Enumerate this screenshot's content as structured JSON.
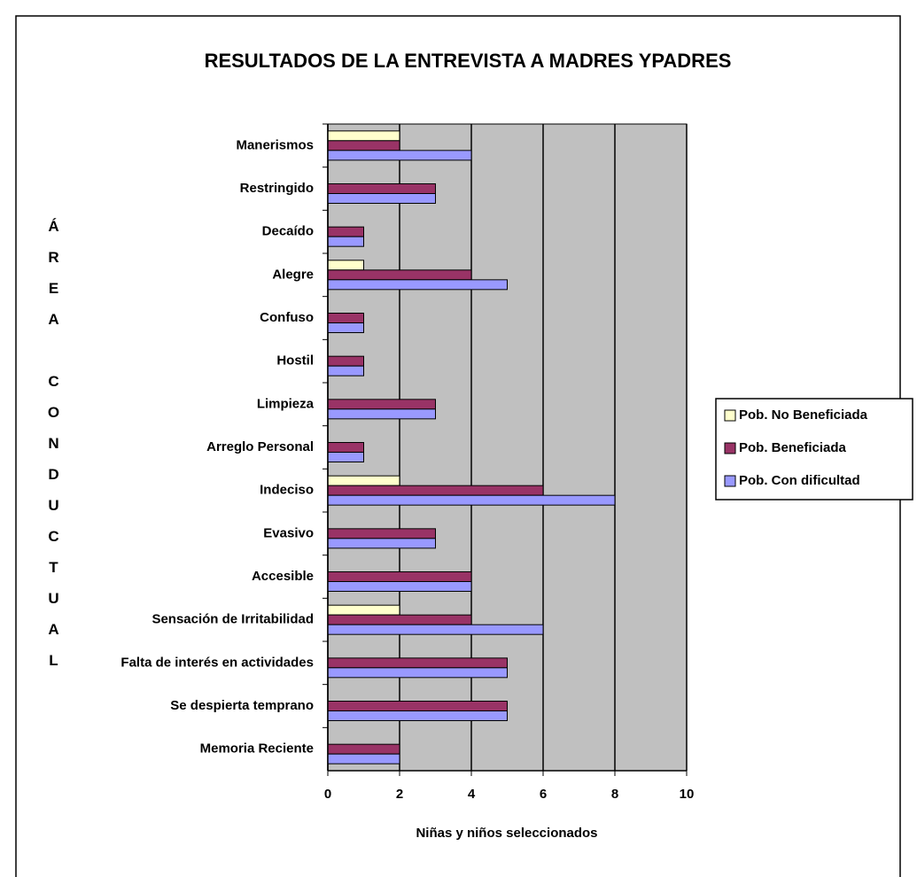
{
  "chart_data": {
    "type": "barh",
    "title": "RESULTADOS DE LA ENTREVISTA A MADRES YPADRES",
    "x_label": "Niñas y niños seleccionados",
    "y_label": "ÁREA CONDUCTUAL",
    "categories": [
      "Manerismos",
      "Restringido",
      "Decaído",
      "Alegre",
      "Confuso",
      "Hostil",
      "Limpieza",
      "Arreglo Personal",
      "Indeciso",
      "Evasivo",
      "Accesible",
      "Sensación de Irritabilidad",
      "Falta de interés en actividades",
      "Se despierta temprano",
      "Memoria Reciente"
    ],
    "series": [
      {
        "name": "Pob. No Beneficiada",
        "color": "#ffffcc",
        "values": [
          2,
          0,
          0,
          1,
          0,
          0,
          0,
          0,
          2,
          0,
          0,
          2,
          0,
          0,
          0
        ]
      },
      {
        "name": "Pob. Beneficiada",
        "color": "#993366",
        "values": [
          2,
          3,
          1,
          4,
          1,
          1,
          3,
          1,
          6,
          3,
          4,
          4,
          5,
          5,
          2
        ]
      },
      {
        "name": "Pob. Con dificultad",
        "color": "#9999ff",
        "values": [
          4,
          3,
          1,
          5,
          1,
          1,
          3,
          1,
          8,
          3,
          4,
          6,
          5,
          5,
          2
        ]
      }
    ],
    "xlim": [
      0,
      10
    ],
    "xticks": [
      0,
      2,
      4,
      6,
      8,
      10
    ],
    "grid": true,
    "plot_background": "#c0c0c0",
    "legend": "right"
  }
}
